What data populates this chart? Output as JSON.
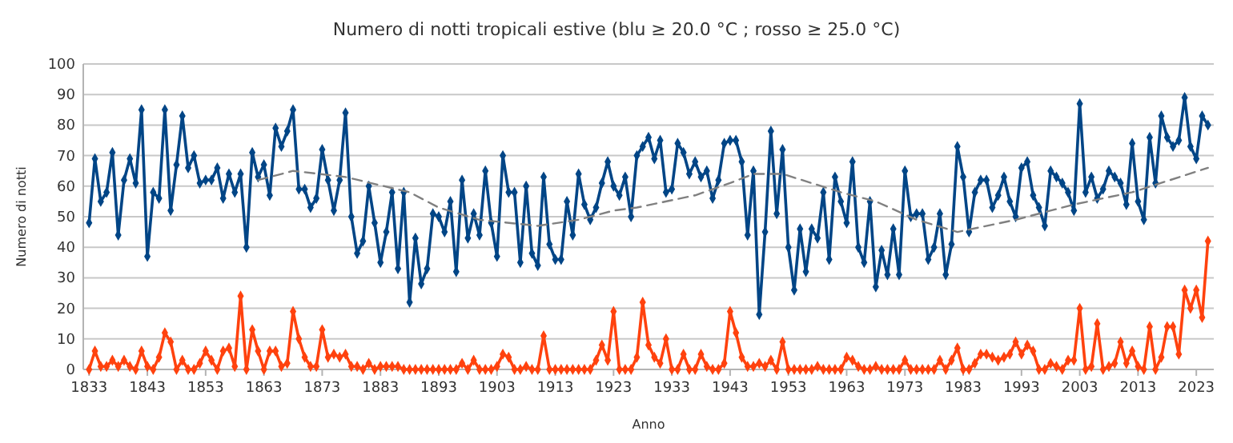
{
  "chart_data": {
    "type": "line",
    "title": "Numero di notti tropicali estive (blu ≥ 20.0 °C ; rosso ≥ 25.0 °C)",
    "xlabel": "Anno",
    "ylabel": "Numero di notti",
    "x": [
      1833,
      1834,
      1835,
      1836,
      1837,
      1838,
      1839,
      1840,
      1841,
      1842,
      1843,
      1844,
      1845,
      1846,
      1847,
      1848,
      1849,
      1850,
      1851,
      1852,
      1853,
      1854,
      1855,
      1856,
      1857,
      1858,
      1859,
      1860,
      1861,
      1862,
      1863,
      1864,
      1865,
      1866,
      1867,
      1868,
      1869,
      1870,
      1871,
      1872,
      1873,
      1874,
      1875,
      1876,
      1877,
      1878,
      1879,
      1880,
      1881,
      1882,
      1883,
      1884,
      1885,
      1886,
      1887,
      1888,
      1889,
      1890,
      1891,
      1892,
      1893,
      1894,
      1895,
      1896,
      1897,
      1898,
      1899,
      1900,
      1901,
      1902,
      1903,
      1904,
      1905,
      1906,
      1907,
      1908,
      1909,
      1910,
      1911,
      1912,
      1913,
      1914,
      1915,
      1916,
      1917,
      1918,
      1919,
      1920,
      1921,
      1922,
      1923,
      1924,
      1925,
      1926,
      1927,
      1928,
      1929,
      1930,
      1931,
      1932,
      1933,
      1934,
      1935,
      1936,
      1937,
      1938,
      1939,
      1940,
      1941,
      1942,
      1943,
      1944,
      1945,
      1946,
      1947,
      1948,
      1949,
      1950,
      1951,
      1952,
      1953,
      1954,
      1955,
      1956,
      1957,
      1958,
      1959,
      1960,
      1961,
      1962,
      1963,
      1964,
      1965,
      1966,
      1967,
      1968,
      1969,
      1970,
      1971,
      1972,
      1973,
      1974,
      1975,
      1976,
      1977,
      1978,
      1979,
      1980,
      1981,
      1982,
      1983,
      1984,
      1985,
      1986,
      1987,
      1988,
      1989,
      1990,
      1991,
      1992,
      1993,
      1994,
      1995,
      1996,
      1997,
      1998,
      1999,
      2000,
      2001,
      2002,
      2003,
      2004,
      2005,
      2006,
      2007,
      2008,
      2009,
      2010,
      2011,
      2012,
      2013,
      2014,
      2015,
      2016,
      2017,
      2018,
      2019,
      2020,
      2021,
      2022,
      2023,
      2024,
      2025
    ],
    "series": [
      {
        "color": "#004586",
        "values": [
          48,
          69,
          55,
          58,
          71,
          44,
          62,
          69,
          61,
          85,
          37,
          58,
          56,
          85,
          52,
          67,
          83,
          66,
          70,
          61,
          62,
          62,
          66,
          56,
          64,
          58,
          64,
          40,
          71,
          63,
          67,
          57,
          79,
          73,
          78,
          85,
          59,
          59,
          53,
          56,
          72,
          62,
          52,
          62,
          84,
          50,
          38,
          42,
          60,
          48,
          35,
          45,
          58,
          33,
          58,
          22,
          43,
          28,
          33,
          51,
          50,
          45,
          55,
          32,
          62,
          43,
          51,
          44,
          65,
          48,
          37,
          70,
          58,
          58,
          35,
          60,
          38,
          34,
          63,
          41,
          36,
          36,
          55,
          44,
          64,
          54,
          49,
          53,
          61,
          68,
          60,
          57,
          63,
          50,
          70,
          73,
          76,
          69,
          75,
          58,
          59,
          74,
          71,
          64,
          68,
          63,
          65,
          56,
          62,
          74,
          75,
          75,
          68,
          44,
          65,
          18,
          45,
          78,
          51,
          72,
          40,
          26,
          46,
          32,
          46,
          43,
          58,
          36,
          63,
          55,
          48,
          68,
          40,
          35,
          55,
          27,
          39,
          31,
          46,
          31,
          65,
          50,
          51,
          51,
          36,
          40,
          51,
          31,
          41,
          73,
          63,
          45,
          58,
          62,
          62,
          53,
          57,
          63,
          55,
          50,
          66,
          68,
          57,
          53,
          47,
          65,
          63,
          61,
          58,
          52,
          87,
          58,
          63,
          56,
          59,
          65,
          63,
          61,
          54,
          74,
          55,
          49,
          76,
          61,
          83,
          76,
          73,
          75,
          89,
          73,
          69,
          83,
          80
        ]
      },
      {
        "color": "#ff420e",
        "values": [
          0,
          6,
          1,
          1,
          3,
          1,
          3,
          1,
          0,
          6,
          1,
          0,
          4,
          12,
          9,
          0,
          3,
          0,
          0,
          2,
          6,
          3,
          0,
          6,
          7,
          1,
          24,
          0,
          13,
          6,
          0,
          6,
          6,
          1,
          2,
          19,
          10,
          4,
          1,
          1,
          13,
          4,
          5,
          4,
          5,
          1,
          1,
          0,
          2,
          0,
          1,
          1,
          1,
          1,
          0,
          0,
          0,
          0,
          0,
          0,
          0,
          0,
          0,
          0,
          2,
          0,
          3,
          0,
          0,
          0,
          1,
          5,
          4,
          0,
          0,
          1,
          0,
          0,
          11,
          0,
          0,
          0,
          0,
          0,
          0,
          0,
          0,
          3,
          8,
          3,
          19,
          0,
          0,
          0,
          4,
          22,
          8,
          4,
          2,
          10,
          0,
          0,
          5,
          0,
          0,
          5,
          1,
          0,
          0,
          2,
          19,
          12,
          4,
          1,
          1,
          2,
          1,
          3,
          0,
          9,
          0,
          0,
          0,
          0,
          0,
          1,
          0,
          0,
          0,
          0,
          4,
          3,
          1,
          0,
          0,
          1,
          0,
          0,
          0,
          0,
          3,
          0,
          0,
          0,
          0,
          0,
          3,
          0,
          3,
          7,
          0,
          0,
          2,
          5,
          5,
          4,
          3,
          4,
          5,
          9,
          5,
          8,
          6,
          0,
          0,
          2,
          1,
          0,
          3,
          3,
          20,
          0,
          1,
          15,
          0,
          1,
          2,
          9,
          2,
          6,
          1,
          0,
          14,
          0,
          4,
          14,
          14,
          5,
          26,
          20,
          26,
          17,
          42
        ]
      },
      {
        "type": "line",
        "color": "#808080",
        "line_style": "dashed",
        "marker": "none",
        "x": [
          1862,
          1868,
          1877,
          1888,
          1893,
          1900,
          1910,
          1917,
          1923,
          1927,
          1937,
          1943,
          1947,
          1952,
          1962,
          1968,
          1975,
          1982,
          1992,
          2002,
          2012,
          2025
        ],
        "values": [
          62,
          65,
          63,
          58,
          53,
          49,
          47,
          49,
          52,
          53,
          57,
          61,
          64,
          64,
          58,
          55,
          49,
          45,
          49,
          54,
          58,
          66
        ]
      }
    ],
    "xlim": [
      1832,
      2026
    ],
    "xticks": [
      1833,
      1843,
      1853,
      1863,
      1873,
      1883,
      1893,
      1903,
      1913,
      1923,
      1933,
      1943,
      1953,
      1963,
      1973,
      1983,
      1993,
      2003,
      2013,
      2023
    ],
    "ylim": [
      0,
      100
    ],
    "yticks": [
      0,
      10,
      20,
      30,
      40,
      50,
      60,
      70,
      80,
      90,
      100
    ],
    "grid": "y",
    "marker": "diamond",
    "line_style": "solid"
  }
}
